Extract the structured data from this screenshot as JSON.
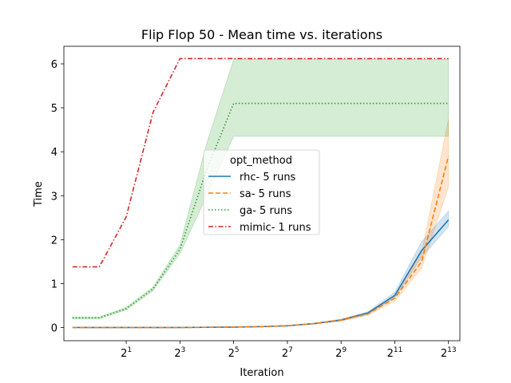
{
  "chart_data": {
    "type": "line",
    "title": "Flip Flop 50 - Mean time vs. iterations",
    "xlabel": "Iteration",
    "ylabel": "Time",
    "x_scale": "log2",
    "x": [
      1,
      2,
      4,
      8,
      16,
      32,
      64,
      128,
      256,
      512,
      1024,
      2048,
      4096,
      8192
    ],
    "xlim": [
      0.4,
      11000
    ],
    "ylim": [
      -0.3,
      6.4
    ],
    "xticks": [
      {
        "value": 2,
        "base": "2",
        "exp": "1"
      },
      {
        "value": 8,
        "base": "2",
        "exp": "3"
      },
      {
        "value": 32,
        "base": "2",
        "exp": "5"
      },
      {
        "value": 128,
        "base": "2",
        "exp": "7"
      },
      {
        "value": 512,
        "base": "2",
        "exp": "9"
      },
      {
        "value": 2048,
        "base": "2",
        "exp": "11"
      },
      {
        "value": 8192,
        "base": "2",
        "exp": "13"
      }
    ],
    "yticks": [
      0,
      1,
      2,
      3,
      4,
      5,
      6
    ],
    "legend": {
      "title": "opt_method",
      "placement": "center"
    },
    "series": [
      {
        "name": "rhc- 5 runs",
        "color": "#1f77b4",
        "dash": "solid",
        "x": [
          0.5,
          1,
          2,
          4,
          8,
          16,
          32,
          64,
          128,
          256,
          512,
          1024,
          2048,
          4096,
          8192
        ],
        "values": [
          0.0,
          0.0,
          0.0,
          0.0,
          0.0,
          0.005,
          0.01,
          0.02,
          0.04,
          0.09,
          0.17,
          0.33,
          0.73,
          1.75,
          2.45
        ],
        "lower": [
          0.0,
          0.0,
          0.0,
          0.0,
          0.0,
          0.0,
          0.005,
          0.015,
          0.035,
          0.08,
          0.15,
          0.3,
          0.68,
          1.6,
          2.3
        ],
        "upper": [
          0.0,
          0.0,
          0.0,
          0.0,
          0.0,
          0.01,
          0.015,
          0.025,
          0.045,
          0.1,
          0.19,
          0.36,
          0.8,
          1.95,
          2.65
        ]
      },
      {
        "name": "sa- 5 runs",
        "color": "#ff7f0e",
        "dash": "dashed",
        "x": [
          0.5,
          1,
          2,
          4,
          8,
          16,
          32,
          64,
          128,
          256,
          512,
          1024,
          2048,
          4096,
          8192
        ],
        "values": [
          0.0,
          0.0,
          0.0,
          0.0,
          0.0,
          0.005,
          0.01,
          0.02,
          0.04,
          0.09,
          0.17,
          0.31,
          0.67,
          1.5,
          3.9
        ],
        "lower": [
          0.0,
          0.0,
          0.0,
          0.0,
          0.0,
          0.0,
          0.005,
          0.015,
          0.035,
          0.08,
          0.15,
          0.28,
          0.6,
          1.35,
          3.2
        ],
        "upper": [
          0.0,
          0.0,
          0.0,
          0.0,
          0.0,
          0.01,
          0.015,
          0.025,
          0.045,
          0.1,
          0.19,
          0.34,
          0.74,
          1.7,
          4.75
        ]
      },
      {
        "name": "ga- 5 runs",
        "color": "#2ca02c",
        "dash": "dotted",
        "x": [
          0.5,
          1,
          2,
          4,
          8,
          16,
          32,
          64,
          128,
          256,
          512,
          1024,
          2048,
          4096,
          8192
        ],
        "values": [
          0.22,
          0.22,
          0.43,
          0.88,
          1.78,
          3.6,
          5.1,
          5.1,
          5.1,
          5.1,
          5.1,
          5.1,
          5.1,
          5.1,
          5.1
        ],
        "lower": [
          0.2,
          0.2,
          0.4,
          0.84,
          1.68,
          3.0,
          4.35,
          4.35,
          4.35,
          4.35,
          4.35,
          4.35,
          4.35,
          4.35,
          4.35
        ],
        "upper": [
          0.24,
          0.24,
          0.46,
          0.92,
          1.88,
          4.2,
          6.1,
          6.1,
          6.1,
          6.1,
          6.1,
          6.1,
          6.1,
          6.1,
          6.1
        ]
      },
      {
        "name": "mimic- 1 runs",
        "color": "#d62728",
        "dash": "dashdot",
        "x": [
          0.5,
          1,
          2,
          4,
          8,
          16,
          32,
          64,
          128,
          256,
          512,
          1024,
          2048,
          4096,
          8192
        ],
        "values": [
          1.38,
          1.38,
          2.52,
          4.9,
          6.12,
          6.12,
          6.12,
          6.12,
          6.12,
          6.12,
          6.12,
          6.12,
          6.12,
          6.12,
          6.12
        ]
      }
    ]
  }
}
